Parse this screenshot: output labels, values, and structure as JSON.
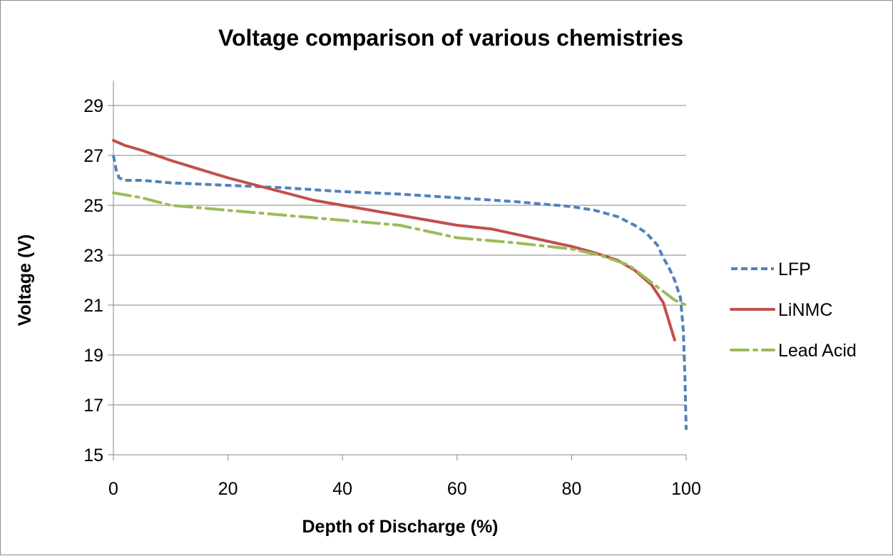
{
  "chart_data": {
    "type": "line",
    "title": "Voltage comparison of various chemistries",
    "xlabel": "Depth of Discharge (%)",
    "ylabel": "Voltage (V)",
    "xlim": [
      0,
      100
    ],
    "ylim": [
      15,
      30
    ],
    "x_ticks": [
      0,
      20,
      40,
      60,
      80,
      100
    ],
    "y_ticks": [
      15,
      17,
      19,
      21,
      23,
      25,
      27,
      29
    ],
    "grid": "horizontal",
    "legend_position": "right",
    "series": [
      {
        "name": "LFP",
        "color": "#4f81bd",
        "style": "dashed",
        "points": [
          [
            0,
            27.0
          ],
          [
            0.5,
            26.4
          ],
          [
            1,
            26.1
          ],
          [
            2,
            26.0
          ],
          [
            5,
            26.0
          ],
          [
            10,
            25.9
          ],
          [
            15,
            25.85
          ],
          [
            20,
            25.8
          ],
          [
            30,
            25.7
          ],
          [
            40,
            25.55
          ],
          [
            50,
            25.45
          ],
          [
            60,
            25.3
          ],
          [
            70,
            25.15
          ],
          [
            75,
            25.05
          ],
          [
            80,
            24.95
          ],
          [
            84,
            24.8
          ],
          [
            88,
            24.55
          ],
          [
            91,
            24.2
          ],
          [
            93,
            23.9
          ],
          [
            95,
            23.4
          ],
          [
            96,
            22.9
          ],
          [
            97,
            22.5
          ],
          [
            98,
            22.0
          ],
          [
            99,
            21.3
          ],
          [
            99.5,
            20.0
          ],
          [
            99.8,
            18.0
          ],
          [
            100,
            16.0
          ]
        ]
      },
      {
        "name": "LiNMC",
        "color": "#c0504d",
        "style": "solid",
        "points": [
          [
            0,
            27.6
          ],
          [
            2,
            27.4
          ],
          [
            5,
            27.2
          ],
          [
            10,
            26.8
          ],
          [
            15,
            26.45
          ],
          [
            20,
            26.1
          ],
          [
            25,
            25.8
          ],
          [
            30,
            25.5
          ],
          [
            35,
            25.2
          ],
          [
            40,
            25.0
          ],
          [
            45,
            24.8
          ],
          [
            50,
            24.6
          ],
          [
            55,
            24.4
          ],
          [
            60,
            24.2
          ],
          [
            66,
            24.05
          ],
          [
            70,
            23.85
          ],
          [
            75,
            23.6
          ],
          [
            80,
            23.35
          ],
          [
            84,
            23.1
          ],
          [
            88,
            22.8
          ],
          [
            91,
            22.4
          ],
          [
            94,
            21.8
          ],
          [
            96,
            21.1
          ],
          [
            98,
            19.6
          ]
        ]
      },
      {
        "name": "Lead Acid",
        "color": "#9bbb59",
        "style": "dashdot",
        "points": [
          [
            0,
            25.5
          ],
          [
            5,
            25.3
          ],
          [
            10,
            25.0
          ],
          [
            20,
            24.8
          ],
          [
            30,
            24.6
          ],
          [
            40,
            24.4
          ],
          [
            50,
            24.2
          ],
          [
            60,
            23.7
          ],
          [
            70,
            23.5
          ],
          [
            80,
            23.25
          ],
          [
            85,
            23.0
          ],
          [
            90,
            22.6
          ],
          [
            94,
            21.9
          ],
          [
            98,
            21.2
          ],
          [
            100,
            21.0
          ]
        ]
      }
    ]
  }
}
